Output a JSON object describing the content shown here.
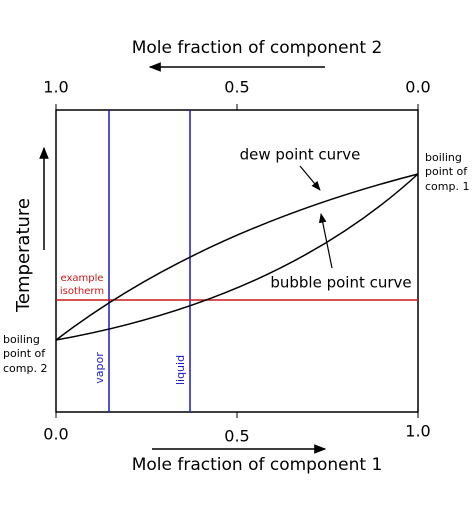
{
  "top_axis": {
    "title": "Mole fraction of component 2",
    "ticks": [
      "1.0",
      "0.5",
      "0.0"
    ]
  },
  "bottom_axis": {
    "title": "Mole fraction of component 1",
    "ticks": [
      "0.0",
      "0.5",
      "1.0"
    ]
  },
  "y_axis": {
    "title": "Temperature"
  },
  "labels": {
    "dew": "dew point curve",
    "bubble": "bubble point curve",
    "isotherm": [
      "example",
      "isotherm"
    ],
    "vapor": "vapor",
    "liquid": "liquid",
    "boiling_1": [
      "boiling",
      "point of",
      "comp. 1"
    ],
    "boiling_2": [
      "boiling",
      "point of",
      "comp. 2"
    ]
  }
}
